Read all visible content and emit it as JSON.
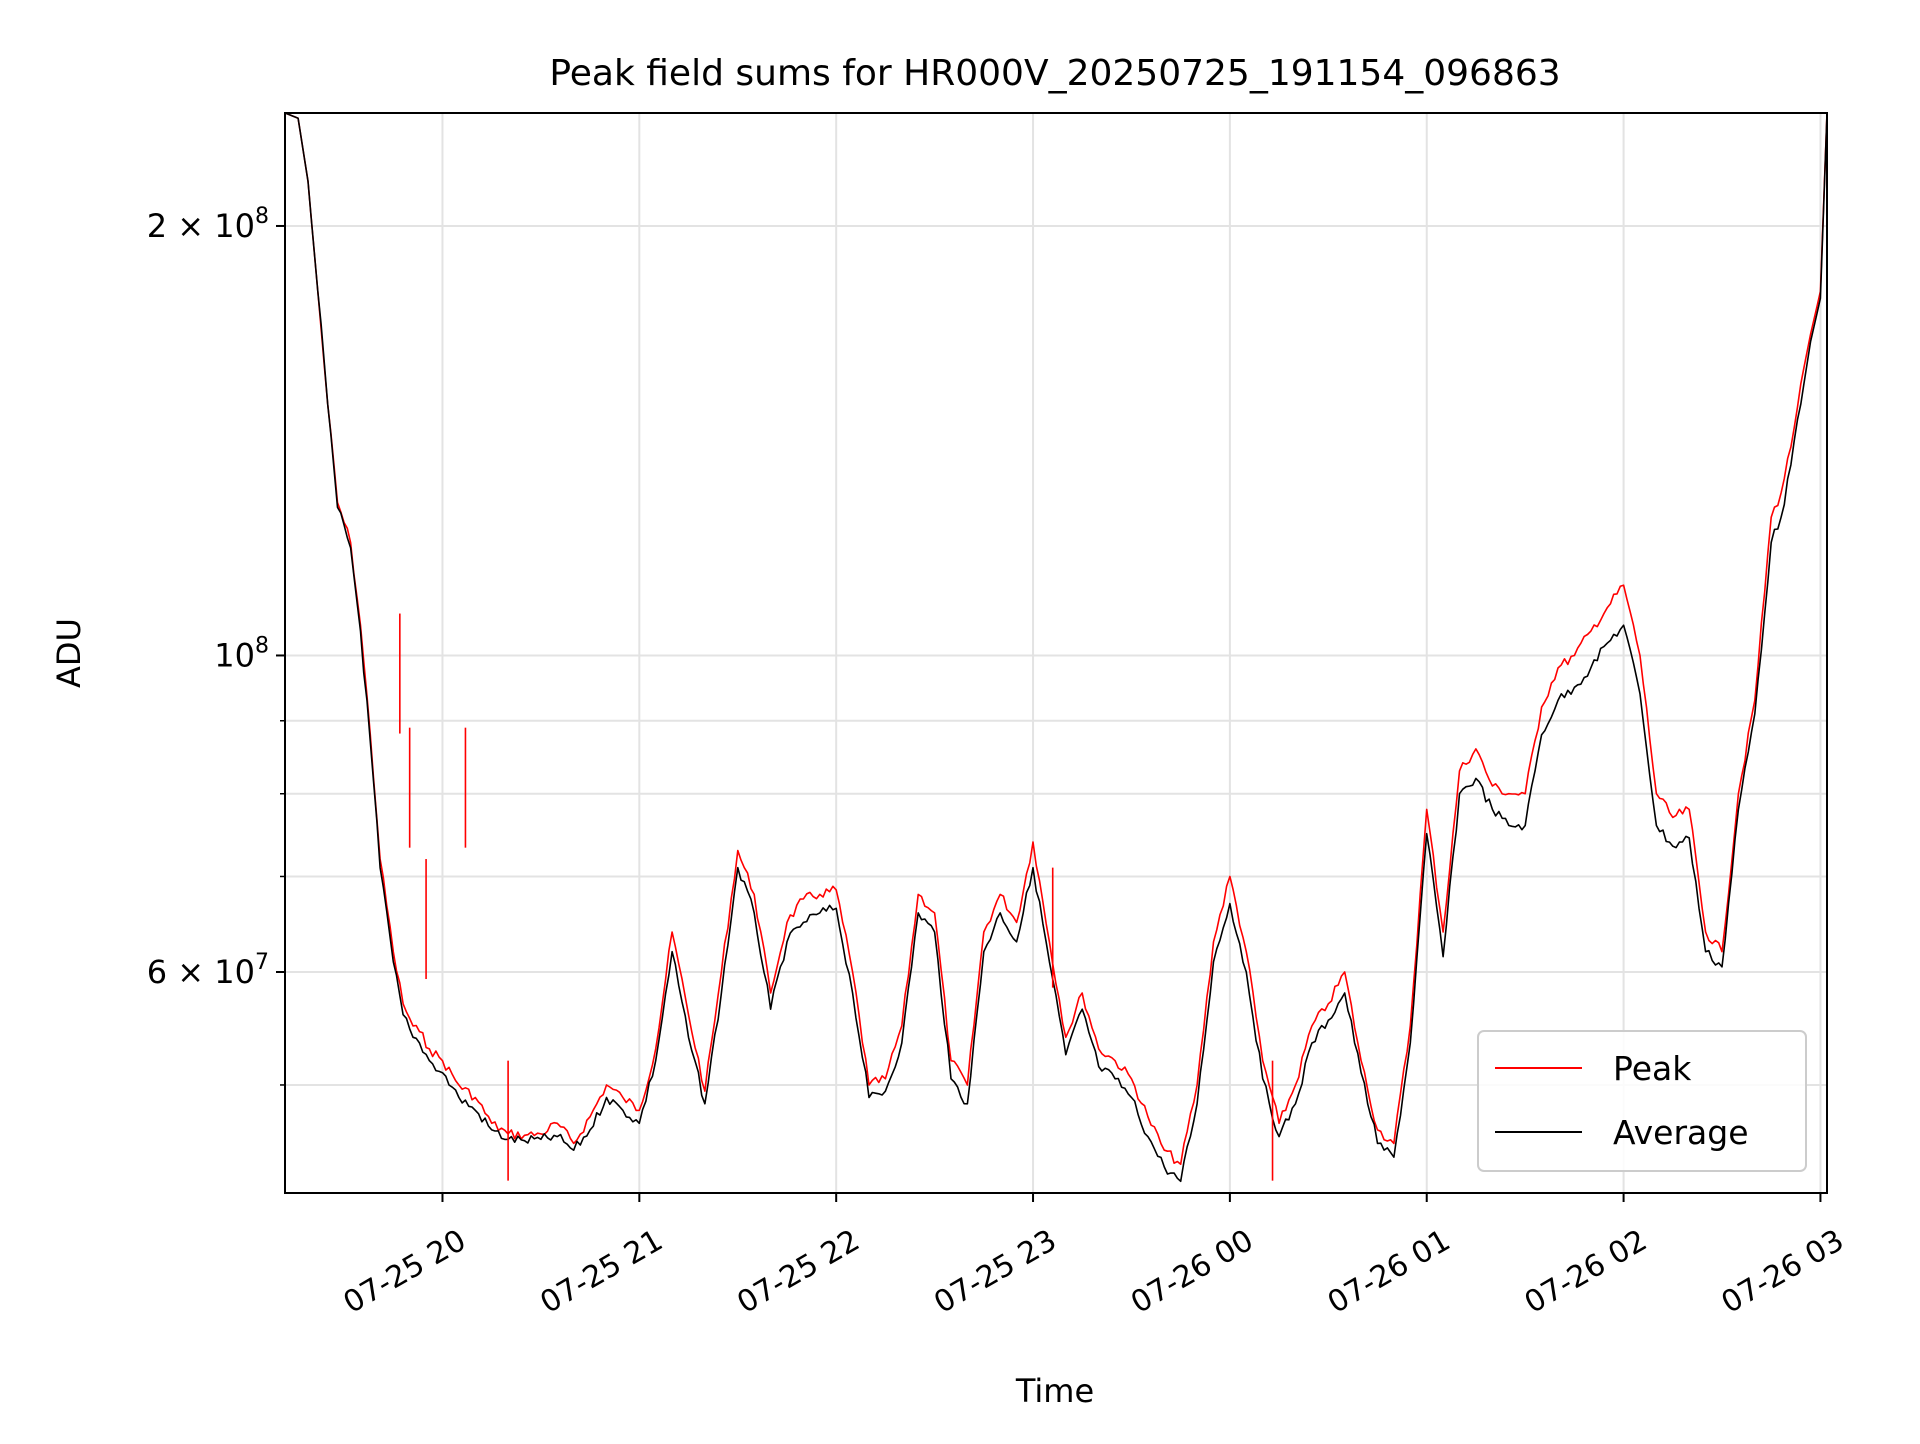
{
  "chart_data": {
    "type": "line",
    "title": "Peak field sums for HR000V_20250725_191154_096863",
    "xlabel": "Time",
    "ylabel": "ADU",
    "yscale": "log",
    "ylim": [
      42000000,
      240000000
    ],
    "xlim": [
      "2025-07-25 19:12",
      "2025-07-26 03:02"
    ],
    "grid": true,
    "legend_position": "bottom-right",
    "x_ticks": [
      {
        "value": "2025-07-25 20:00",
        "label": "07-25 20"
      },
      {
        "value": "2025-07-25 21:00",
        "label": "07-25 21"
      },
      {
        "value": "2025-07-25 22:00",
        "label": "07-25 22"
      },
      {
        "value": "2025-07-25 23:00",
        "label": "07-25 23"
      },
      {
        "value": "2025-07-26 00:00",
        "label": "07-26 00"
      },
      {
        "value": "2025-07-26 01:00",
        "label": "07-26 01"
      },
      {
        "value": "2025-07-26 02:00",
        "label": "07-26 02"
      },
      {
        "value": "2025-07-26 03:00",
        "label": "07-26 03"
      }
    ],
    "y_ticks_major": [
      {
        "value": 100000000,
        "base": "10",
        "exp": "8",
        "mant": ""
      },
      {
        "value": 200000000,
        "base": "10",
        "exp": "8",
        "mant": "2 × "
      },
      {
        "value": 60000000,
        "base": "10",
        "exp": "7",
        "mant": "6 × "
      }
    ],
    "y_grid_minor": [
      50000000,
      70000000,
      80000000,
      90000000
    ],
    "series": [
      {
        "name": "Peak",
        "color": "#ff0000",
        "x": [
          "2025-07-25 19:12",
          "2025-07-25 19:16",
          "2025-07-25 19:19",
          "2025-07-25 19:22",
          "2025-07-25 19:25",
          "2025-07-25 19:28",
          "2025-07-25 19:32",
          "2025-07-25 19:35",
          "2025-07-25 19:38",
          "2025-07-25 19:41",
          "2025-07-25 19:45",
          "2025-07-25 19:48",
          "2025-07-25 19:51",
          "2025-07-25 19:53",
          "2025-07-25 19:56",
          "2025-07-25 20:00",
          "2025-07-25 20:05",
          "2025-07-25 20:10",
          "2025-07-25 20:15",
          "2025-07-25 20:20",
          "2025-07-25 20:25",
          "2025-07-25 20:30",
          "2025-07-25 20:35",
          "2025-07-25 20:40",
          "2025-07-25 20:45",
          "2025-07-25 20:50",
          "2025-07-25 20:55",
          "2025-07-25 21:00",
          "2025-07-25 21:05",
          "2025-07-25 21:10",
          "2025-07-25 21:15",
          "2025-07-25 21:20",
          "2025-07-25 21:25",
          "2025-07-25 21:30",
          "2025-07-25 21:35",
          "2025-07-25 21:40",
          "2025-07-25 21:45",
          "2025-07-25 21:50",
          "2025-07-25 21:55",
          "2025-07-25 22:00",
          "2025-07-25 22:05",
          "2025-07-25 22:10",
          "2025-07-25 22:15",
          "2025-07-25 22:20",
          "2025-07-25 22:25",
          "2025-07-25 22:30",
          "2025-07-25 22:35",
          "2025-07-25 22:40",
          "2025-07-25 22:45",
          "2025-07-25 22:50",
          "2025-07-25 22:55",
          "2025-07-25 23:00",
          "2025-07-25 23:05",
          "2025-07-25 23:10",
          "2025-07-25 23:15",
          "2025-07-25 23:20",
          "2025-07-25 23:25",
          "2025-07-25 23:30",
          "2025-07-25 23:35",
          "2025-07-25 23:40",
          "2025-07-25 23:45",
          "2025-07-25 23:50",
          "2025-07-25 23:55",
          "2025-07-26 00:00",
          "2025-07-26 00:05",
          "2025-07-26 00:10",
          "2025-07-26 00:15",
          "2025-07-26 00:20",
          "2025-07-26 00:25",
          "2025-07-26 00:30",
          "2025-07-26 00:35",
          "2025-07-26 00:40",
          "2025-07-26 00:45",
          "2025-07-26 00:50",
          "2025-07-26 00:55",
          "2025-07-26 01:00",
          "2025-07-26 01:05",
          "2025-07-26 01:10",
          "2025-07-26 01:15",
          "2025-07-26 01:20",
          "2025-07-26 01:25",
          "2025-07-26 01:30",
          "2025-07-26 01:35",
          "2025-07-26 01:40",
          "2025-07-26 01:45",
          "2025-07-26 01:50",
          "2025-07-26 01:55",
          "2025-07-26 02:00",
          "2025-07-26 02:05",
          "2025-07-26 02:10",
          "2025-07-26 02:15",
          "2025-07-26 02:20",
          "2025-07-26 02:25",
          "2025-07-26 02:30",
          "2025-07-26 02:35",
          "2025-07-26 02:40",
          "2025-07-26 02:45",
          "2025-07-26 02:48",
          "2025-07-26 02:51",
          "2025-07-26 02:54",
          "2025-07-26 02:57",
          "2025-07-26 03:00",
          "2025-07-26 03:02"
        ],
        "values": [
          240000000,
          238000000,
          215000000,
          180000000,
          150000000,
          128000000,
          120000000,
          105000000,
          88000000,
          72000000,
          62000000,
          57000000,
          55000000,
          54500000,
          53000000,
          52000000,
          50000000,
          49000000,
          47000000,
          46200000,
          46100000,
          46200000,
          47000000,
          45500000,
          47500000,
          50000000,
          49000000,
          48000000,
          53000000,
          64000000,
          56000000,
          49500000,
          60000000,
          73000000,
          68000000,
          58000000,
          65000000,
          67500000,
          68000000,
          68500000,
          60000000,
          50000000,
          50500000,
          55000000,
          68000000,
          66000000,
          52000000,
          50000000,
          64000000,
          68000000,
          65000000,
          74000000,
          63000000,
          54000000,
          58000000,
          53000000,
          52000000,
          50500000,
          47500000,
          45000000,
          44000000,
          50000000,
          63000000,
          70000000,
          62000000,
          52000000,
          47000000,
          50000000,
          55000000,
          57000000,
          60000000,
          52000000,
          46500000,
          45500000,
          55000000,
          78000000,
          64000000,
          83000000,
          86000000,
          81000000,
          80000000,
          80000000,
          92000000,
          98000000,
          100000000,
          104000000,
          108000000,
          112000000,
          100000000,
          80000000,
          77000000,
          78000000,
          64000000,
          62000000,
          80000000,
          93000000,
          125000000,
          130000000,
          140000000,
          155000000,
          168000000,
          180000000,
          240000000
        ]
      },
      {
        "name": "Average",
        "color": "#000000",
        "x": [
          "2025-07-25 19:12",
          "2025-07-25 19:16",
          "2025-07-25 19:19",
          "2025-07-25 19:22",
          "2025-07-25 19:25",
          "2025-07-25 19:28",
          "2025-07-25 19:32",
          "2025-07-25 19:35",
          "2025-07-25 19:38",
          "2025-07-25 19:41",
          "2025-07-25 19:45",
          "2025-07-25 19:48",
          "2025-07-25 19:51",
          "2025-07-25 19:53",
          "2025-07-25 19:56",
          "2025-07-25 20:00",
          "2025-07-25 20:05",
          "2025-07-25 20:10",
          "2025-07-25 20:15",
          "2025-07-25 20:20",
          "2025-07-25 20:25",
          "2025-07-25 20:30",
          "2025-07-25 20:35",
          "2025-07-25 20:40",
          "2025-07-25 20:45",
          "2025-07-25 20:50",
          "2025-07-25 20:55",
          "2025-07-25 21:00",
          "2025-07-25 21:05",
          "2025-07-25 21:10",
          "2025-07-25 21:15",
          "2025-07-25 21:20",
          "2025-07-25 21:25",
          "2025-07-25 21:30",
          "2025-07-25 21:35",
          "2025-07-25 21:40",
          "2025-07-25 21:45",
          "2025-07-25 21:50",
          "2025-07-25 21:55",
          "2025-07-25 22:00",
          "2025-07-25 22:05",
          "2025-07-25 22:10",
          "2025-07-25 22:15",
          "2025-07-25 22:20",
          "2025-07-25 22:25",
          "2025-07-25 22:30",
          "2025-07-25 22:35",
          "2025-07-25 22:40",
          "2025-07-25 22:45",
          "2025-07-25 22:50",
          "2025-07-25 22:55",
          "2025-07-25 23:00",
          "2025-07-25 23:05",
          "2025-07-25 23:10",
          "2025-07-25 23:15",
          "2025-07-25 23:20",
          "2025-07-25 23:25",
          "2025-07-25 23:30",
          "2025-07-25 23:35",
          "2025-07-25 23:40",
          "2025-07-25 23:45",
          "2025-07-25 23:50",
          "2025-07-25 23:55",
          "2025-07-26 00:00",
          "2025-07-26 00:05",
          "2025-07-26 00:10",
          "2025-07-26 00:15",
          "2025-07-26 00:20",
          "2025-07-26 00:25",
          "2025-07-26 00:30",
          "2025-07-26 00:35",
          "2025-07-26 00:40",
          "2025-07-26 00:45",
          "2025-07-26 00:50",
          "2025-07-26 00:55",
          "2025-07-26 01:00",
          "2025-07-26 01:05",
          "2025-07-26 01:10",
          "2025-07-26 01:15",
          "2025-07-26 01:20",
          "2025-07-26 01:25",
          "2025-07-26 01:30",
          "2025-07-26 01:35",
          "2025-07-26 01:40",
          "2025-07-26 01:45",
          "2025-07-26 01:50",
          "2025-07-26 01:55",
          "2025-07-26 02:00",
          "2025-07-26 02:05",
          "2025-07-26 02:10",
          "2025-07-26 02:15",
          "2025-07-26 02:20",
          "2025-07-26 02:25",
          "2025-07-26 02:30",
          "2025-07-26 02:35",
          "2025-07-26 02:40",
          "2025-07-26 02:45",
          "2025-07-26 02:48",
          "2025-07-26 02:51",
          "2025-07-26 02:54",
          "2025-07-26 02:57",
          "2025-07-26 03:00",
          "2025-07-26 03:02"
        ],
        "values": [
          240000000,
          238000000,
          215000000,
          180000000,
          150000000,
          127000000,
          119000000,
          104000000,
          87000000,
          71000000,
          61000000,
          56000000,
          54000000,
          53500000,
          52000000,
          51000000,
          49000000,
          48000000,
          46500000,
          45800000,
          45700000,
          45800000,
          46000000,
          45000000,
          46500000,
          49000000,
          48000000,
          47000000,
          52000000,
          62000000,
          54000000,
          48500000,
          58000000,
          71000000,
          66000000,
          56500000,
          63000000,
          65000000,
          66000000,
          66500000,
          58000000,
          49000000,
          49500000,
          53500000,
          66000000,
          64000000,
          50500000,
          48500000,
          62000000,
          66000000,
          63000000,
          71000000,
          61000000,
          52500000,
          56500000,
          51500000,
          50500000,
          49000000,
          46000000,
          43800000,
          42800000,
          48500000,
          61000000,
          67000000,
          60000000,
          50500000,
          46000000,
          48500000,
          53500000,
          55500000,
          58000000,
          51000000,
          45500000,
          44500000,
          53500000,
          75000000,
          61500000,
          80000000,
          82000000,
          78000000,
          76000000,
          76000000,
          88000000,
          93000000,
          95000000,
          98000000,
          102000000,
          105000000,
          94000000,
          76000000,
          73500000,
          74500000,
          62000000,
          60500000,
          78000000,
          91000000,
          120000000,
          125000000,
          136000000,
          150000000,
          166000000,
          178000000,
          240000000
        ]
      }
    ],
    "spikes": [
      {
        "series": "Peak",
        "x": "2025-07-25 19:47",
        "value": 107000000
      },
      {
        "series": "Peak",
        "x": "2025-07-25 19:50",
        "value": 89000000
      },
      {
        "series": "Peak",
        "x": "2025-07-25 20:07",
        "value": 89000000
      },
      {
        "series": "Peak",
        "x": "2025-07-25 19:55",
        "value": 72000000
      },
      {
        "series": "Peak",
        "x": "2025-07-25 20:20",
        "value": 52000000
      },
      {
        "series": "Peak",
        "x": "2025-07-25 23:06",
        "value": 71000000
      },
      {
        "series": "Peak",
        "x": "2025-07-26 00:13",
        "value": 52000000
      }
    ]
  }
}
